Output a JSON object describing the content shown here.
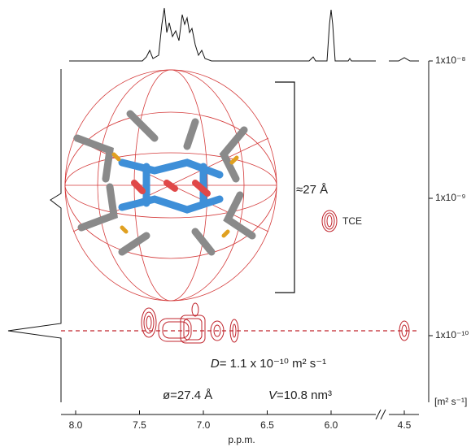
{
  "x_axis": {
    "label": "p.p.m.",
    "ticks": [
      {
        "value": 8,
        "label": "8.0"
      },
      {
        "value": 7.5,
        "label": "7.5"
      },
      {
        "value": 7,
        "label": "7.0"
      },
      {
        "value": 6.5,
        "label": "6.5"
      },
      {
        "value": 6,
        "label": "6.0"
      },
      {
        "value": 4.5,
        "label": "4.5"
      }
    ]
  },
  "y_axis": {
    "unit": "[m² s⁻¹]",
    "log": true,
    "ticks": [
      {
        "value": 1e-08,
        "label": "1x10⁻⁸"
      },
      {
        "value": 1e-09,
        "label": "1x10⁻⁹"
      },
      {
        "value": 1e-10,
        "label": "1x10⁻¹⁰"
      }
    ]
  },
  "annotations": {
    "size": "≈27 Å",
    "solvent": "TCE",
    "diffusion_symbol": "D",
    "diffusion": "= 1.1 x 10⁻¹⁰ m² s⁻¹",
    "diameter": "ø=27.4 Å",
    "volume_symbol": "V",
    "volume": "=10.8 nm³"
  }
}
